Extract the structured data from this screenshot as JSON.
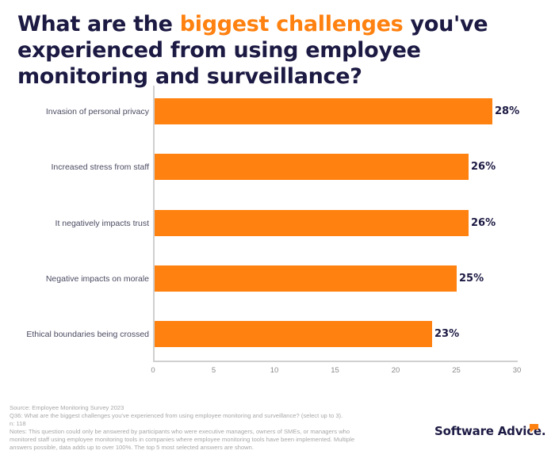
{
  "title": {
    "part1": "What are the ",
    "highlight": "biggest challenges",
    "part2": " you've experienced from using employee monitoring and surveillance?"
  },
  "colors": {
    "bar": "#ff8110",
    "title": "#1c1a43",
    "highlight": "#ff8110"
  },
  "chart_data": {
    "type": "bar",
    "orientation": "horizontal",
    "title": "What are the biggest challenges you've experienced from using employee monitoring and surveillance?",
    "categories": [
      "Invasion of personal privacy",
      "Increased stress from staff",
      "It negatively impacts trust",
      "Negative impacts on morale",
      "Ethical boundaries being crossed"
    ],
    "values": [
      28,
      26,
      26,
      25,
      23
    ],
    "value_labels": [
      "28%",
      "26%",
      "26%",
      "25%",
      "23%"
    ],
    "xlabel": "",
    "ylabel": "",
    "xlim": [
      0,
      30
    ],
    "xticks": [
      "0",
      "5",
      "10",
      "15",
      "20",
      "25",
      "30"
    ],
    "grid": false,
    "legend": null
  },
  "footnotes": {
    "source": "Source: Employee Monitoring Survey 2023",
    "question": "Q36: What are the biggest challenges you've experienced from using employee monitoring and surveillance? (select up to 3).",
    "n": "n: 118",
    "notes_line1": "Notes: This question could only be answered by participants who were executive managers, owners of SMEs, or managers who",
    "notes_line2": "monitored staff using employee monitoring tools in companies where employee monitoring tools have been implemented. Multiple",
    "notes_line3": "answers possible, data adds up to over 100%. The top 5 most selected answers are shown."
  },
  "logo": {
    "text": "Software Advice."
  }
}
